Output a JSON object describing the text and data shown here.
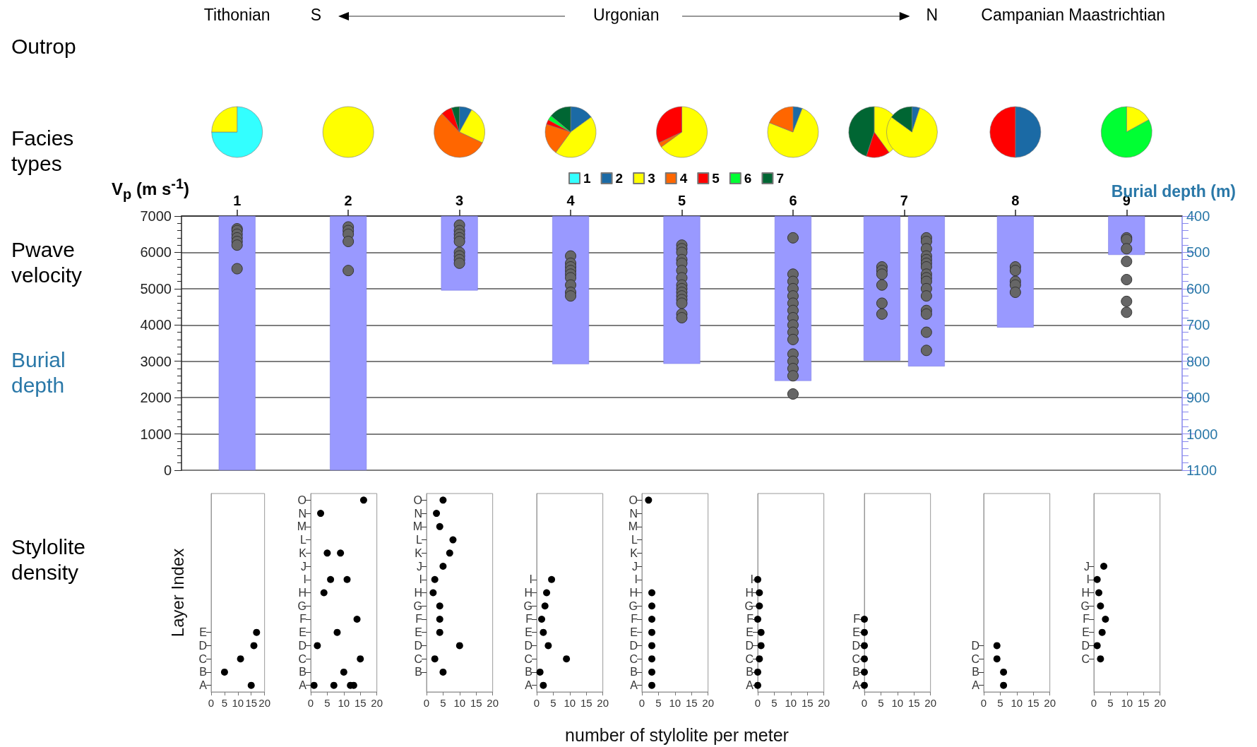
{
  "chart_data": [
    {
      "type": "scatter",
      "xlabel": "Outrop",
      "ylabel": "V$_{p}$ (m s$^{-1}$)",
      "y2label": "Burial depth (m)",
      "annotations": [
        "Tithonian",
        "S",
        "Urgonian",
        "N",
        "Campanian Maastrichtian",
        "Facies types",
        "Pwave velocity",
        "Burial depth"
      ],
      "xlim": [
        0.5,
        9.5
      ],
      "xticks": [
        1,
        2,
        3,
        4,
        5,
        6,
        7,
        8,
        9
      ],
      "ylim": [
        0,
        7000
      ],
      "yticks": [
        0,
        1000,
        2000,
        3000,
        4000,
        5000,
        6000,
        7000
      ],
      "y2lim": [
        1100,
        400
      ],
      "y2ticks": [
        400,
        500,
        600,
        700,
        800,
        900,
        1000,
        1100
      ],
      "grid": "y",
      "marker": "circle",
      "series": [
        {
          "type": "bar",
          "axis": "y2",
          "color": "#9999ff",
          "x": [
            1,
            2,
            3,
            4,
            5,
            6,
            6.8,
            7.2,
            8,
            9
          ],
          "values": [
            1100,
            1100,
            605,
            808,
            807,
            854,
            798,
            814,
            707,
            507
          ]
        },
        {
          "type": "scatter",
          "color": "#666666",
          "x": [
            1,
            1,
            1,
            1,
            1,
            1,
            1,
            2,
            2,
            2,
            2,
            2,
            3,
            3,
            3,
            3,
            3,
            3,
            3,
            3,
            3,
            4,
            4,
            4,
            4,
            4,
            4,
            4,
            4,
            4,
            5,
            5,
            5,
            5,
            5,
            5,
            5,
            5,
            5,
            5,
            5,
            5,
            5,
            5,
            5,
            6,
            6,
            6,
            6,
            6,
            6,
            6,
            6,
            6,
            6,
            6,
            6,
            6,
            6,
            6,
            6,
            6.8,
            6.8,
            6.8,
            6.8,
            6.8,
            6.8,
            7.2,
            7.2,
            7.2,
            7.2,
            7.2,
            7.2,
            7.2,
            7.2,
            7.2,
            7.2,
            7.2,
            7.2,
            7.2,
            7.2,
            7.2,
            7.2,
            8,
            8,
            8,
            8,
            8,
            9,
            9,
            9,
            9,
            9,
            9,
            9
          ],
          "values": [
            6650,
            6600,
            6500,
            6400,
            6300,
            6200,
            5550,
            6700,
            6600,
            6500,
            6300,
            5500,
            6750,
            6600,
            6500,
            6400,
            6300,
            6000,
            5900,
            5800,
            5700,
            5900,
            5700,
            5600,
            5500,
            5400,
            5300,
            5100,
            4900,
            4800,
            6200,
            6100,
            6000,
            5800,
            5700,
            5500,
            5300,
            5100,
            5000,
            4900,
            4800,
            4700,
            4600,
            4300,
            4200,
            6400,
            5400,
            5200,
            5000,
            4800,
            4600,
            4400,
            4200,
            4000,
            3800,
            3600,
            3200,
            3000,
            2800,
            2600,
            2100,
            5600,
            5500,
            5400,
            5100,
            4600,
            4300,
            6400,
            6300,
            6100,
            5900,
            5800,
            5700,
            5600,
            5400,
            5300,
            5200,
            5000,
            4800,
            4400,
            4300,
            3800,
            3300,
            5600,
            5500,
            5200,
            5100,
            4900,
            6400,
            6350,
            6100,
            5750,
            5250,
            4650,
            4350
          ]
        }
      ]
    },
    {
      "type": "pie",
      "categories": [
        "1",
        "2",
        "3",
        "4",
        "5",
        "6",
        "7"
      ],
      "colors": [
        "#33ffff",
        "#1b6aa5",
        "#ffff00",
        "#ff6600",
        "#ff0000",
        "#00ff33",
        "#006633"
      ],
      "legend": "bottom",
      "series": [
        {
          "values": [
            75,
            null,
            25,
            null,
            null,
            null,
            null
          ]
        },
        {
          "values": [
            null,
            null,
            100,
            null,
            null,
            null,
            null
          ]
        },
        {
          "values": [
            null,
            8,
            24,
            56,
            7,
            null,
            5
          ]
        },
        {
          "values": [
            null,
            15,
            45,
            20,
            3,
            3,
            14
          ]
        },
        {
          "values": [
            null,
            null,
            65,
            3,
            32,
            null,
            null
          ]
        },
        {
          "values": [
            null,
            6,
            75,
            19,
            null,
            null,
            null
          ]
        },
        {
          "values": [
            null,
            null,
            40,
            null,
            15,
            null,
            45
          ]
        },
        {
          "values": [
            null,
            5,
            80,
            null,
            null,
            null,
            15
          ]
        },
        {
          "values": [
            null,
            50,
            null,
            null,
            50,
            null,
            null
          ]
        },
        {
          "values": [
            null,
            null,
            17,
            null,
            null,
            83,
            null
          ]
        }
      ]
    },
    {
      "type": "scatter",
      "orientation": "horizontal",
      "ylabel": "Layer Index",
      "annotations": [
        "Stylolite density"
      ],
      "xlim": [
        0,
        20
      ],
      "xticks": [
        0,
        5,
        10,
        15,
        20
      ],
      "marker": "circle",
      "color": "#000000",
      "categories": [
        null,
        null,
        null,
        null,
        null,
        null,
        null,
        null,
        null,
        null,
        "E",
        "D",
        "C",
        "B",
        "A"
      ],
      "values": [
        null,
        null,
        null,
        null,
        null,
        null,
        null,
        null,
        null,
        null,
        17,
        16,
        11,
        5,
        15
      ]
    },
    {
      "type": "scatter",
      "orientation": "horizontal",
      "xlim": [
        0,
        20
      ],
      "xticks": [
        0,
        5,
        10,
        15,
        20
      ],
      "marker": "circle",
      "categories": [
        "O",
        "N",
        "M",
        "L",
        "K",
        "J",
        "I",
        "H",
        "G",
        "F",
        "E",
        "D",
        "C",
        "B",
        "A"
      ],
      "series": [
        {
          "color": "#000000",
          "values": [
            16,
            3,
            null,
            null,
            5,
            null,
            6,
            4,
            null,
            14,
            8,
            2,
            15,
            10,
            1
          ]
        },
        {
          "color": "#000000",
          "values": [
            null,
            null,
            null,
            null,
            9,
            null,
            11,
            null,
            null,
            null,
            null,
            null,
            null,
            null,
            7
          ]
        },
        {
          "color": "#000000",
          "values": [
            null,
            null,
            null,
            null,
            null,
            null,
            null,
            null,
            null,
            null,
            null,
            null,
            null,
            null,
            12
          ]
        },
        {
          "color": "#000000",
          "values": [
            null,
            null,
            null,
            null,
            null,
            null,
            null,
            null,
            null,
            null,
            null,
            null,
            null,
            null,
            13
          ]
        }
      ]
    },
    {
      "type": "scatter",
      "orientation": "horizontal",
      "xlim": [
        0,
        20
      ],
      "xticks": [
        0,
        5,
        10,
        15,
        20
      ],
      "marker": "circle",
      "color": "#000000",
      "categories": [
        "O",
        "N",
        "M",
        "L",
        "K",
        "J",
        "I",
        "H",
        "G",
        "F",
        "E",
        "D",
        "C",
        "B",
        null
      ],
      "values": [
        5,
        3,
        4,
        8,
        7,
        5,
        2.5,
        2,
        4,
        4,
        4,
        10,
        2.5,
        5,
        null
      ]
    },
    {
      "type": "scatter",
      "orientation": "horizontal",
      "xlim": [
        0,
        20
      ],
      "xticks": [
        0,
        5,
        10,
        15,
        20
      ],
      "marker": "circle",
      "color": "#000000",
      "categories": [
        null,
        null,
        null,
        null,
        null,
        null,
        "I",
        "H",
        "G",
        "F",
        "E",
        "D",
        "C",
        "B",
        "A"
      ],
      "values": [
        null,
        null,
        null,
        null,
        null,
        null,
        4.5,
        3,
        2.5,
        1.5,
        2,
        3.5,
        9,
        1,
        2
      ]
    },
    {
      "type": "scatter",
      "orientation": "horizontal",
      "xlabel": "number of stylolite per meter",
      "xlim": [
        0,
        20
      ],
      "xticks": [
        0,
        5,
        10,
        15,
        20
      ],
      "marker": "circle",
      "color": "#000000",
      "categories": [
        "O",
        "N",
        "M",
        "L",
        "K",
        "J",
        "I",
        "H",
        "G",
        "F",
        "E",
        "D",
        "C",
        "B",
        "A"
      ],
      "values": [
        2,
        null,
        null,
        null,
        null,
        null,
        null,
        3,
        3,
        3,
        3,
        3,
        3,
        3,
        3
      ]
    },
    {
      "type": "scatter",
      "orientation": "horizontal",
      "xlim": [
        0,
        20
      ],
      "xticks": [
        0,
        5,
        10,
        15,
        20
      ],
      "marker": "circle",
      "color": "#000000",
      "categories": [
        null,
        null,
        null,
        null,
        null,
        null,
        "I",
        "H",
        "G",
        "F",
        "E",
        "D",
        "C",
        "B",
        "A"
      ],
      "values": [
        null,
        null,
        null,
        null,
        null,
        null,
        0,
        0.5,
        0.5,
        0,
        1,
        1,
        0.5,
        0,
        0
      ]
    },
    {
      "type": "scatter",
      "orientation": "horizontal",
      "xlim": [
        0,
        20
      ],
      "xticks": [
        0,
        5,
        10,
        15,
        20
      ],
      "marker": "circle",
      "color": "#000000",
      "categories": [
        null,
        null,
        null,
        null,
        null,
        null,
        null,
        null,
        null,
        "F",
        "E",
        "D",
        "C",
        "B",
        "A"
      ],
      "values": [
        null,
        null,
        null,
        null,
        null,
        null,
        null,
        null,
        null,
        0,
        0,
        0,
        0,
        0,
        0
      ]
    },
    {
      "type": "scatter",
      "orientation": "horizontal",
      "xlim": [
        0,
        20
      ],
      "xticks": [
        0,
        5,
        10,
        15,
        20
      ],
      "marker": "circle",
      "color": "#000000",
      "categories": [
        null,
        null,
        null,
        null,
        null,
        null,
        null,
        null,
        null,
        null,
        null,
        "D",
        "C",
        "B",
        "A"
      ],
      "values": [
        null,
        null,
        null,
        null,
        null,
        null,
        null,
        null,
        null,
        null,
        null,
        4,
        4,
        6,
        6
      ]
    },
    {
      "type": "scatter",
      "orientation": "horizontal",
      "xlim": [
        0,
        20
      ],
      "xticks": [
        0,
        5,
        10,
        15,
        20
      ],
      "marker": "circle",
      "color": "#000000",
      "categories": [
        null,
        null,
        null,
        null,
        null,
        "J",
        "I",
        "H",
        "G",
        "F",
        "E",
        "D",
        "C",
        null,
        null
      ],
      "values": [
        null,
        null,
        null,
        null,
        null,
        3,
        1,
        1.5,
        2,
        3.5,
        2.5,
        1,
        2,
        null,
        null
      ]
    }
  ]
}
